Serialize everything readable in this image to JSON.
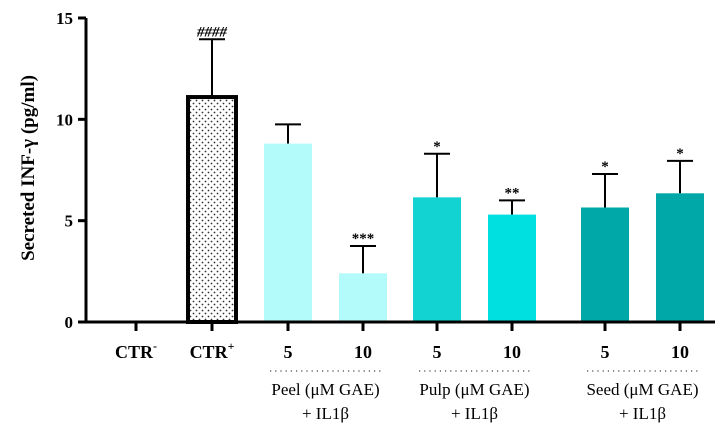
{
  "chart_data": {
    "type": "bar",
    "ylabel": "Secreted INF-γ (pg/ml)",
    "ylim": [
      0,
      15
    ],
    "yticks": [
      0,
      5,
      10,
      15
    ],
    "categories": [
      "CTR-",
      "CTR+",
      "5",
      "10",
      "5",
      "10",
      "5",
      "10"
    ],
    "category_labels": [
      {
        "base": "CTR",
        "sup": "-"
      },
      {
        "base": "CTR",
        "sup": "+"
      },
      {
        "base": "5",
        "sup": ""
      },
      {
        "base": "10",
        "sup": ""
      },
      {
        "base": "5",
        "sup": ""
      },
      {
        "base": "10",
        "sup": ""
      },
      {
        "base": "5",
        "sup": ""
      },
      {
        "base": "10",
        "sup": ""
      }
    ],
    "values": [
      0,
      11.1,
      8.8,
      2.4,
      6.15,
      5.3,
      5.65,
      6.35
    ],
    "errors": [
      0,
      2.85,
      0.95,
      1.35,
      2.15,
      0.7,
      1.65,
      1.6
    ],
    "annotations": [
      "",
      "####",
      "",
      "***",
      "*",
      "**",
      "*",
      "*"
    ],
    "colors": [
      "#ffffff",
      "#ffffff",
      "#b3fbfb",
      "#b3fbfb",
      "#12d2d2",
      "#00e0e0",
      "#00a8a8",
      "#00a8a8"
    ],
    "groups": [
      {
        "line1": "Peel (μM GAE)",
        "line2": "+ IL1β"
      },
      {
        "line1": "Pulp (μM GAE)",
        "line2": "+ IL1β"
      },
      {
        "line1": "Seed (μM GAE)",
        "line2": "+ IL1β"
      }
    ]
  }
}
